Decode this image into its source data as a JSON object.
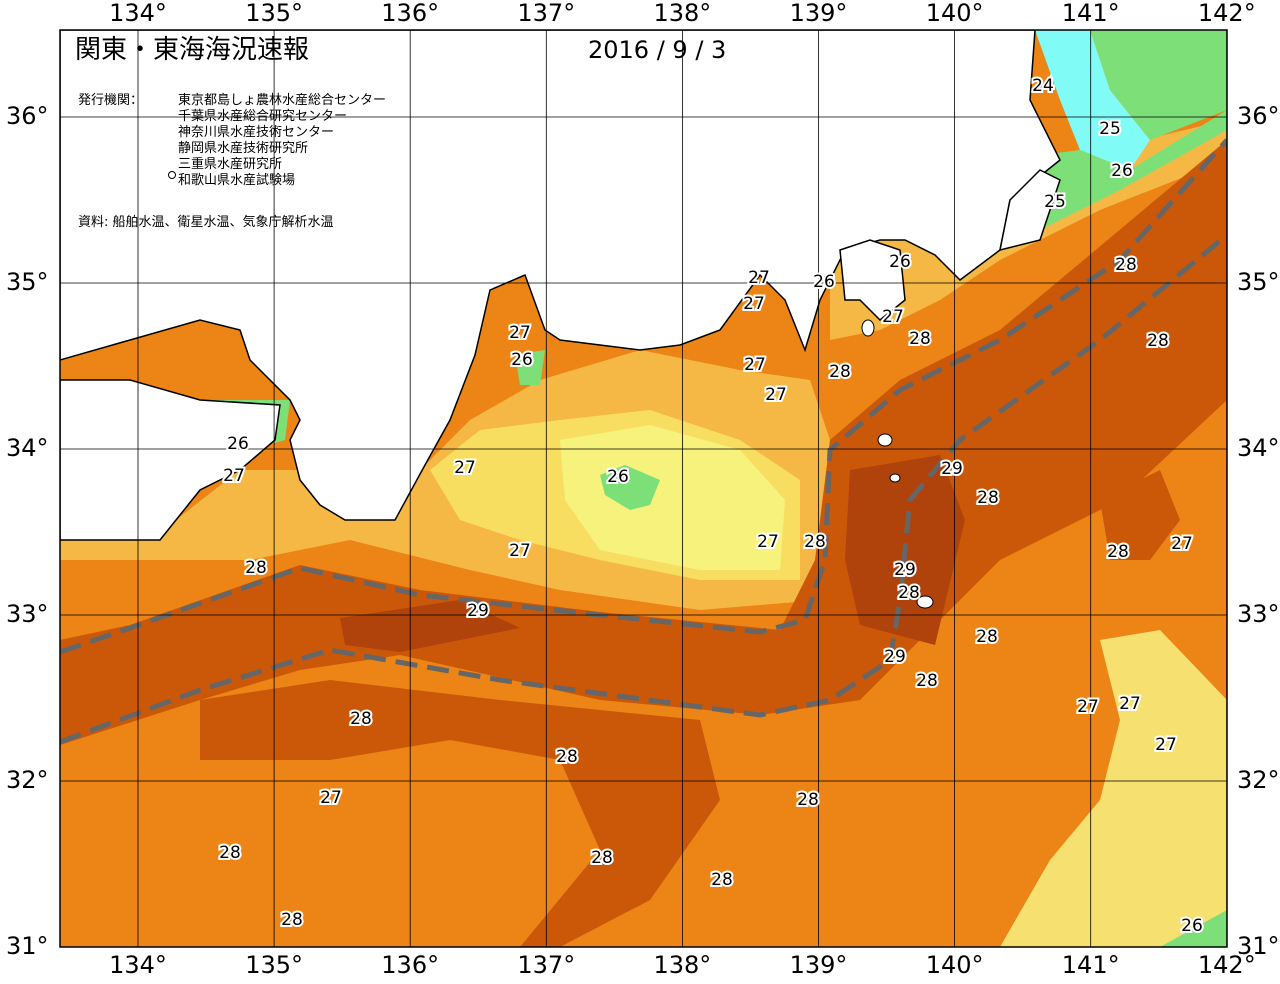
{
  "header": {
    "title": "関東・東海海況速報",
    "date": "2016 / 9 / 3"
  },
  "publisher": {
    "label": "発行機関：",
    "organizations": [
      "東京都島しょ農林水産総合センター",
      "千葉県水産総合研究センター",
      "神奈川県水産技術センター",
      "静岡県水産技術研究所",
      "三重県水産研究所",
      "和歌山県水産試験場"
    ]
  },
  "source": "資料: 船舶水温、衛星水温、気象庁解析水温",
  "longitude_ticks": [
    {
      "value": 134,
      "label": "134°"
    },
    {
      "value": 135,
      "label": "135°"
    },
    {
      "value": 136,
      "label": "136°"
    },
    {
      "value": 137,
      "label": "137°"
    },
    {
      "value": 138,
      "label": "138°"
    },
    {
      "value": 139,
      "label": "139°"
    },
    {
      "value": 140,
      "label": "140°"
    },
    {
      "value": 141,
      "label": "141°"
    },
    {
      "value": 142,
      "label": "142°"
    }
  ],
  "latitude_ticks": [
    {
      "value": 36,
      "label": "36°"
    },
    {
      "value": 35,
      "label": "35°"
    },
    {
      "value": 34,
      "label": "34°"
    },
    {
      "value": 33,
      "label": "33°"
    },
    {
      "value": 32,
      "label": "32°"
    },
    {
      "value": 31,
      "label": "31°"
    }
  ],
  "contour_labels": [
    24,
    25,
    26,
    25,
    28,
    26,
    26,
    27,
    27,
    27,
    28,
    28,
    27,
    26,
    27,
    28,
    27,
    26,
    27,
    27,
    26,
    29,
    28,
    27,
    28,
    27,
    28,
    27,
    28,
    29,
    28,
    29,
    28,
    29,
    28,
    27,
    27,
    28,
    27,
    28,
    27,
    28,
    28,
    28,
    28,
    28,
    26
  ]
}
